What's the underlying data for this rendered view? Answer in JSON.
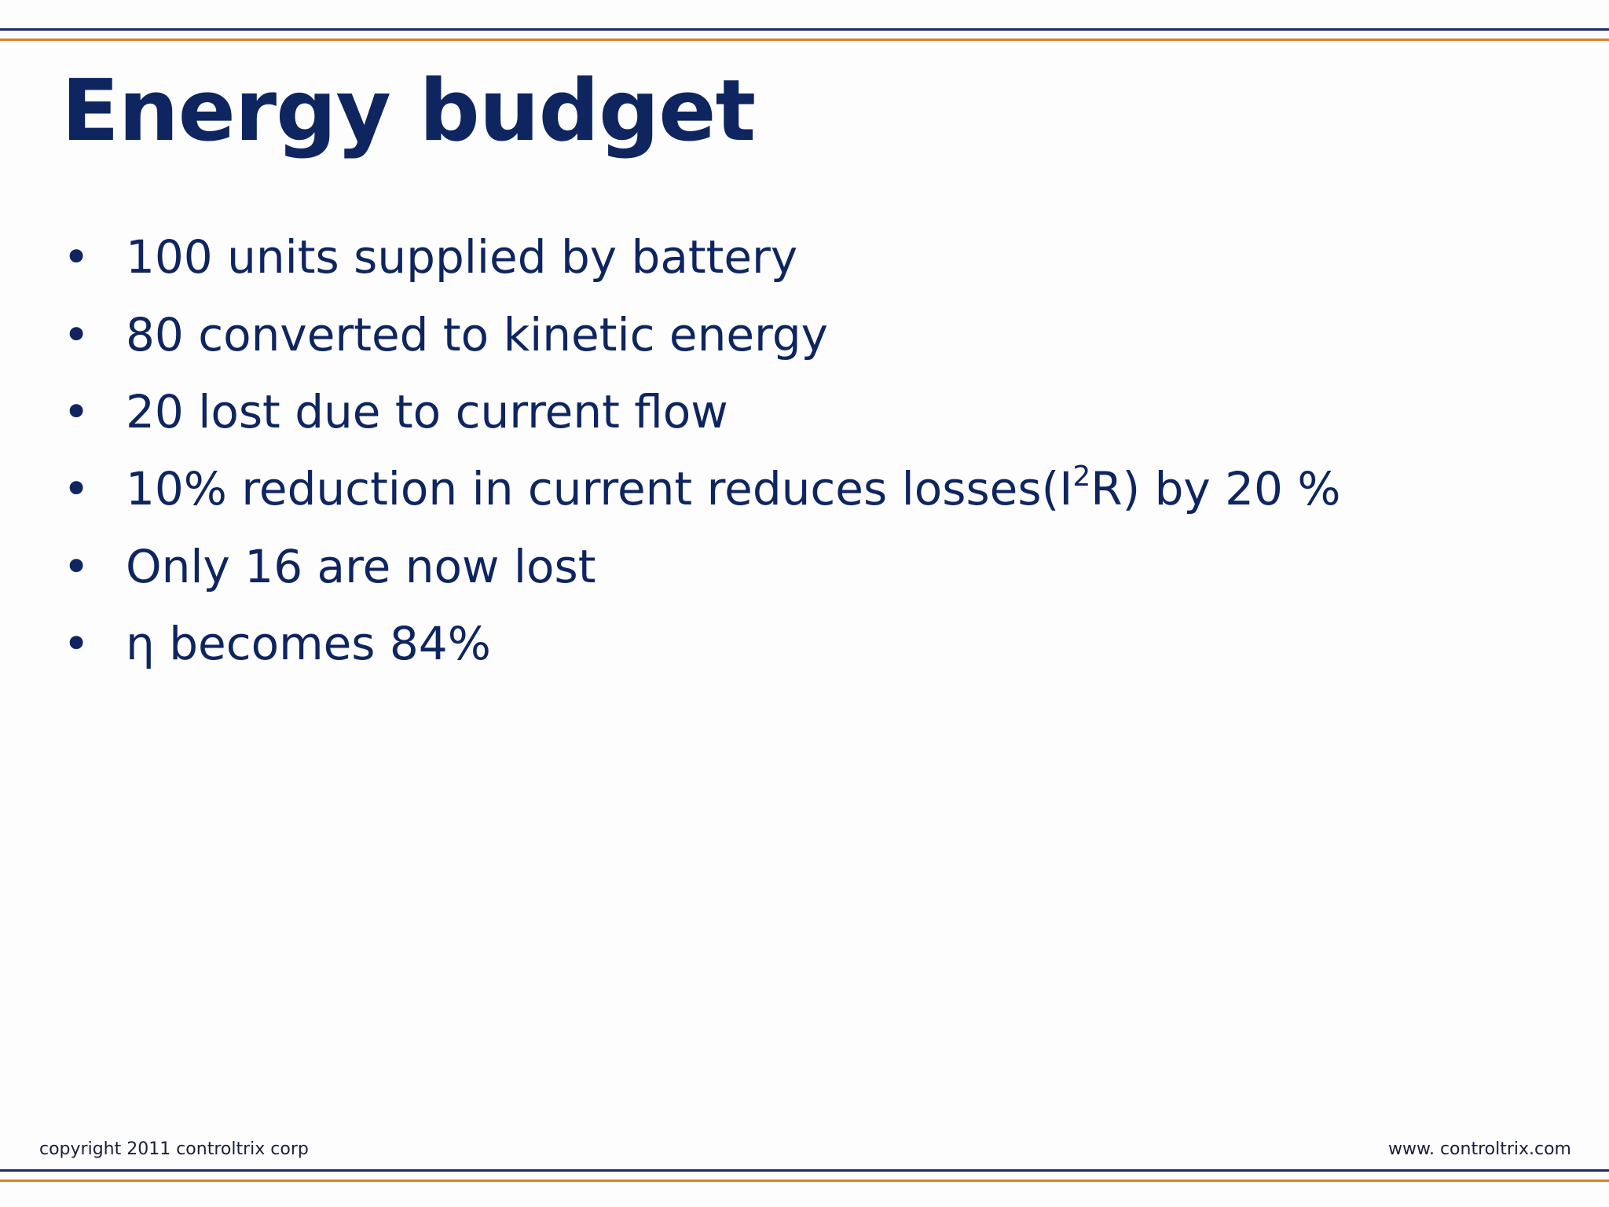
{
  "slide": {
    "title": "Energy budget",
    "bullets": [
      {
        "text": "100 units supplied by battery"
      },
      {
        "text": "80 converted to kinetic energy"
      },
      {
        "text": "20 lost due to current flow"
      },
      {
        "pre": "10% reduction in current reduces losses(I",
        "sup": "2",
        "post": "R) by 20 %"
      },
      {
        "text": "Only 16 are now lost"
      },
      {
        "text": "η becomes 84%"
      }
    ],
    "bullet_glyph": "•"
  },
  "footer": {
    "left": "copyright 2011 controltrix corp",
    "right": "www. controltrix.com"
  },
  "colors": {
    "title": "#0e2560",
    "rule_navy": "#1a2a6c",
    "rule_orange": "#d9822b"
  }
}
